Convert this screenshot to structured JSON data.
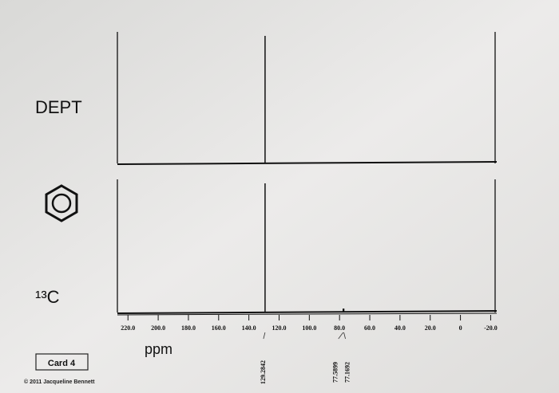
{
  "chart_data": {
    "type": "nmr",
    "x_label": "ppm",
    "card": "Card 4",
    "copyright": "© 2011 Jacqueline Bennett",
    "xlim": [
      227,
      -24
    ],
    "ylim": [
      0,
      100
    ],
    "xticks": [
      {
        "value": 220,
        "label": "220.0"
      },
      {
        "value": 200,
        "label": "200.0"
      },
      {
        "value": 180,
        "label": "180.0"
      },
      {
        "value": 160,
        "label": "160.0"
      },
      {
        "value": 140,
        "label": "140.0"
      },
      {
        "value": 120,
        "label": "120.0"
      },
      {
        "value": 100,
        "label": "100.0"
      },
      {
        "value": 80,
        "label": "80.0"
      },
      {
        "value": 60,
        "label": "60.0"
      },
      {
        "value": 40,
        "label": "40.0"
      },
      {
        "value": 20,
        "label": "20.0"
      },
      0,
      {
        "value": -20,
        "label": "-20.0"
      }
    ],
    "peak_labels": [
      {
        "x": 129.2842,
        "label": "129.2842"
      },
      {
        "x": 77.5899,
        "label": "77.5899"
      },
      {
        "x": 77.1692,
        "label": "77.1692"
      }
    ],
    "series": [
      {
        "name": "DEPT",
        "color": "#111111",
        "x": [
          129.2842
        ],
        "values": [
          100
        ]
      },
      {
        "name": "¹³C",
        "color": "#111111",
        "x": [
          129.2842,
          77.5899,
          77.1692
        ],
        "values": [
          100,
          3,
          3
        ]
      }
    ]
  }
}
